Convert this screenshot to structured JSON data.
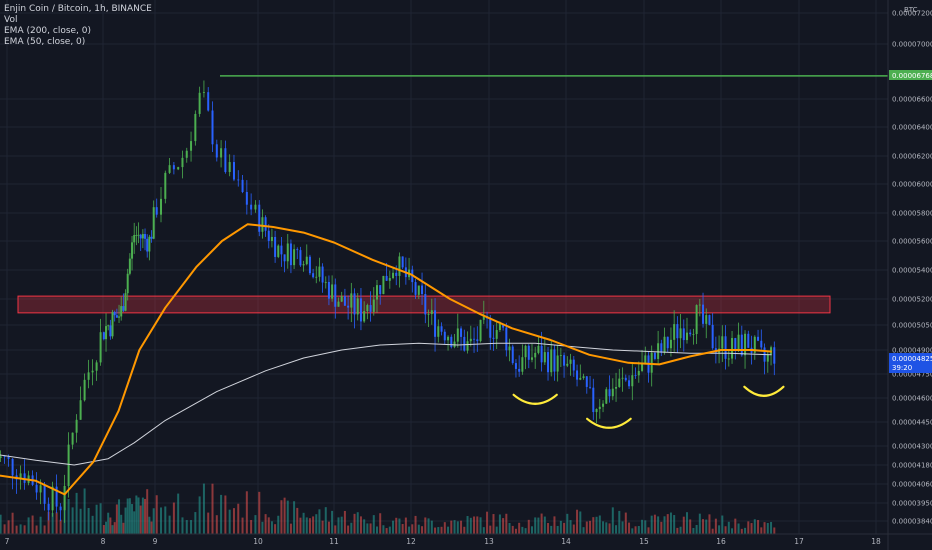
{
  "legend": {
    "symbol_line": "Enjin Coin / Bitcoin, 1h, BINANCE",
    "vol_label": "Vol",
    "ema200_label": "EMA (200, close, 0)",
    "ema50_label": "EMA (50, close, 0)"
  },
  "chart_data": {
    "type": "candlestick",
    "title": "Enjin Coin / Bitcoin, 1h, BINANCE",
    "price_unit": "BTC",
    "y_ticks": [
      "0.00007200",
      "0.00007000",
      "0.00006600",
      "0.00006400",
      "0.00006200",
      "0.00006000",
      "0.00005800",
      "0.00005600",
      "0.00005400",
      "0.00005200",
      "0.00005050",
      "0.00004900",
      "0.00004750",
      "0.00004600",
      "0.00004450",
      "0.00004300",
      "0.00004180",
      "0.00004060",
      "0.00003950",
      "0.00003840"
    ],
    "x_ticks": [
      "7",
      "8",
      "9",
      "10",
      "11",
      "12",
      "13",
      "14",
      "15",
      "16",
      "17",
      "18"
    ],
    "horizontal_line": {
      "value": "0.00006768",
      "color": "#4caf50"
    },
    "last_price": {
      "value": "0.00004825",
      "countdown": "39:20",
      "color": "#1e53e5"
    },
    "resistance_zone": {
      "low": 5.12e-05,
      "high": 5.22e-05,
      "color": "#f23645"
    },
    "price_path": [
      [
        6.85,
        4.25e-05
      ],
      [
        7.2,
        4.12e-05
      ],
      [
        7.55,
        3.92e-05
      ],
      [
        7.75,
        4.6e-05
      ],
      [
        8.0,
        5.02e-05
      ],
      [
        8.35,
        5.12e-05
      ],
      [
        8.6,
        5.65e-05
      ],
      [
        8.9,
        5.6e-05
      ],
      [
        9.1,
        6.02e-05
      ],
      [
        9.3,
        6.23e-05
      ],
      [
        9.45,
        6.65e-05
      ],
      [
        9.6,
        6.23e-05
      ],
      [
        9.8,
        5.98e-05
      ],
      [
        10.0,
        5.76e-05
      ],
      [
        10.3,
        5.52e-05
      ],
      [
        10.6,
        5.52e-05
      ],
      [
        10.85,
        5.32e-05
      ],
      [
        11.1,
        5.18e-05
      ],
      [
        11.35,
        5.13e-05
      ],
      [
        11.6,
        5.3e-05
      ],
      [
        11.8,
        5.45e-05
      ],
      [
        12.0,
        5.3e-05
      ],
      [
        12.25,
        5.08e-05
      ],
      [
        12.5,
        5e-05
      ],
      [
        12.75,
        4.92e-05
      ],
      [
        13.0,
        5.05e-05
      ],
      [
        13.2,
        5e-05
      ],
      [
        13.35,
        4.8e-05
      ],
      [
        13.6,
        4.88e-05
      ],
      [
        13.85,
        4.83e-05
      ],
      [
        14.1,
        4.75e-05
      ],
      [
        14.35,
        4.55e-05
      ],
      [
        14.55,
        4.65e-05
      ],
      [
        14.75,
        4.7e-05
      ],
      [
        15.0,
        4.8e-05
      ],
      [
        15.25,
        4.9e-05
      ],
      [
        15.45,
        5.03e-05
      ],
      [
        15.7,
        5.1e-05
      ],
      [
        15.9,
        4.95e-05
      ],
      [
        16.15,
        4.9e-05
      ],
      [
        16.35,
        4.95e-05
      ],
      [
        16.55,
        4.82e-05
      ],
      [
        16.65,
        4.88e-05
      ]
    ],
    "ema50_path": [
      [
        6.85,
        4.12e-05
      ],
      [
        7.3,
        4.08e-05
      ],
      [
        7.6,
        4e-05
      ],
      [
        7.9,
        4.2e-05
      ],
      [
        8.3,
        4.52e-05
      ],
      [
        8.7,
        4.9e-05
      ],
      [
        9.1,
        5.15e-05
      ],
      [
        9.4,
        5.42e-05
      ],
      [
        9.65,
        5.6e-05
      ],
      [
        9.9,
        5.72e-05
      ],
      [
        10.2,
        5.7e-05
      ],
      [
        10.6,
        5.66e-05
      ],
      [
        11.0,
        5.59e-05
      ],
      [
        11.5,
        5.47e-05
      ],
      [
        12.0,
        5.37e-05
      ],
      [
        12.5,
        5.2e-05
      ],
      [
        12.9,
        5.11e-05
      ],
      [
        13.3,
        5.03e-05
      ],
      [
        13.8,
        4.96e-05
      ],
      [
        14.3,
        4.87e-05
      ],
      [
        14.8,
        4.82e-05
      ],
      [
        15.2,
        4.81e-05
      ],
      [
        15.6,
        4.86e-05
      ],
      [
        16.0,
        4.9e-05
      ],
      [
        16.4,
        4.9e-05
      ],
      [
        16.65,
        4.89e-05
      ]
    ],
    "ema200_path": [
      [
        6.85,
        4.25e-05
      ],
      [
        7.3,
        4.21e-05
      ],
      [
        7.7,
        4.18e-05
      ],
      [
        8.1,
        4.22e-05
      ],
      [
        8.6,
        4.32e-05
      ],
      [
        9.1,
        4.46e-05
      ],
      [
        9.6,
        4.64e-05
      ],
      [
        10.1,
        4.77e-05
      ],
      [
        10.6,
        4.85e-05
      ],
      [
        11.1,
        4.9e-05
      ],
      [
        11.6,
        4.93e-05
      ],
      [
        12.1,
        4.94e-05
      ],
      [
        12.6,
        4.93e-05
      ],
      [
        13.1,
        4.94e-05
      ],
      [
        13.6,
        4.94e-05
      ],
      [
        14.1,
        4.92e-05
      ],
      [
        14.6,
        4.9e-05
      ],
      [
        15.1,
        4.89e-05
      ],
      [
        15.6,
        4.88e-05
      ],
      [
        16.1,
        4.88e-05
      ],
      [
        16.65,
        4.87e-05
      ]
    ],
    "volume_profile": [
      [
        6.85,
        0.25
      ],
      [
        7.3,
        0.2
      ],
      [
        7.7,
        0.55
      ],
      [
        8.0,
        0.35
      ],
      [
        8.5,
        0.4
      ],
      [
        9.0,
        0.5
      ],
      [
        9.5,
        0.55
      ],
      [
        10.0,
        0.45
      ],
      [
        10.5,
        0.35
      ],
      [
        11.0,
        0.3
      ],
      [
        11.5,
        0.25
      ],
      [
        12.0,
        0.2
      ],
      [
        12.5,
        0.2
      ],
      [
        13.0,
        0.25
      ],
      [
        13.5,
        0.2
      ],
      [
        14.0,
        0.25
      ],
      [
        14.5,
        0.3
      ],
      [
        15.0,
        0.2
      ],
      [
        15.5,
        0.25
      ],
      [
        16.0,
        0.2
      ],
      [
        16.65,
        0.15
      ]
    ],
    "x_range": [
      6.85,
      16.7
    ],
    "arcs": [
      {
        "center_x": 13.6,
        "value": 4.62e-05,
        "half_width": 0.28
      },
      {
        "center_x": 14.55,
        "value": 4.47e-05,
        "half_width": 0.28
      },
      {
        "center_x": 16.55,
        "value": 4.67e-05,
        "half_width": 0.25
      }
    ],
    "colors": {
      "background": "#131722",
      "grid": "#1f2433",
      "up": "#4caf50",
      "down": "#2962ff",
      "ema50": "#ff9800",
      "ema200": "#d1d4dc",
      "vol_up": "#26a69a",
      "vol_down": "#ef5350",
      "arc": "#ffeb3b"
    }
  }
}
